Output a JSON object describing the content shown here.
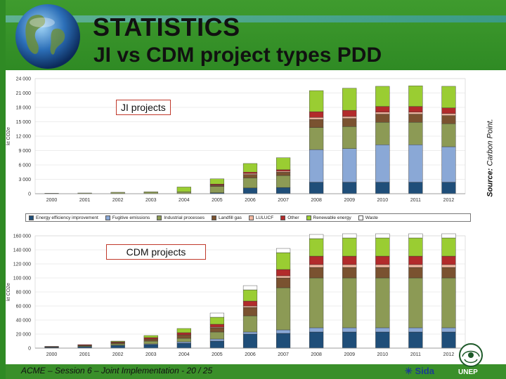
{
  "header": {
    "title": "STATISTICS",
    "subtitle": "JI vs CDM project types PDD"
  },
  "source_note": {
    "label": "Source:",
    "value": "Carbon Point."
  },
  "footer": {
    "session": "ACME – Session 6 – Joint Implementation - 20 / 25",
    "sida": "Sida",
    "unep": "UNEP"
  },
  "colors": {
    "band": "#3a8f2a",
    "label_border": "#c0392b"
  },
  "chart_data": [
    {
      "type": "bar",
      "stacked": true,
      "title": "JI projects",
      "xlabel": "",
      "ylabel": "kt CO2e",
      "ylim": [
        0,
        24000
      ],
      "yticks": [
        0,
        3000,
        6000,
        9000,
        12000,
        15000,
        18000,
        21000,
        24000
      ],
      "ytick_labels": [
        "0",
        "3 000",
        "6 000",
        "9 000",
        "12 000",
        "15 000",
        "18 000",
        "21 000",
        "24 000"
      ],
      "grid": true,
      "legend_position": "bottom",
      "categories": [
        "2000",
        "2001",
        "2002",
        "2003",
        "2004",
        "2005",
        "2006",
        "2007",
        "2008",
        "2009",
        "2010",
        "2011",
        "2012"
      ],
      "series": [
        {
          "name": "Energy efficiency improvement",
          "color": "#1f4e79",
          "values": [
            0,
            0,
            0,
            0,
            0,
            200,
            1200,
            1300,
            2400,
            2400,
            2400,
            2400,
            2400
          ]
        },
        {
          "name": "Fugitive emissions",
          "color": "#8aa8d6",
          "values": [
            0,
            0,
            0,
            0,
            0,
            0,
            0,
            0,
            6800,
            7000,
            7800,
            7800,
            7400
          ]
        },
        {
          "name": "Industrial processes",
          "color": "#8c9a55",
          "values": [
            100,
            150,
            300,
            400,
            400,
            1300,
            2100,
            2500,
            4600,
            4600,
            4700,
            4700,
            4800
          ]
        },
        {
          "name": "Landfill gas",
          "color": "#7a5230",
          "values": [
            0,
            0,
            0,
            0,
            0,
            200,
            700,
            700,
            1700,
            1700,
            1700,
            1700,
            1700
          ]
        },
        {
          "name": "LULUCF",
          "color": "#f2b8a0",
          "values": [
            0,
            0,
            0,
            0,
            0,
            100,
            200,
            200,
            400,
            400,
            400,
            400,
            400
          ]
        },
        {
          "name": "Other",
          "color": "#b22b2b",
          "values": [
            0,
            0,
            0,
            0,
            0,
            200,
            300,
            300,
            1200,
            1300,
            1200,
            1200,
            1200
          ]
        },
        {
          "name": "Renewable energy",
          "color": "#9acd32",
          "values": [
            0,
            0,
            0,
            0,
            1000,
            1100,
            1800,
            2500,
            4400,
            4600,
            4200,
            4300,
            4500
          ]
        },
        {
          "name": "Waste",
          "color": "#ffffff",
          "values": [
            0,
            0,
            0,
            0,
            0,
            0,
            0,
            0,
            0,
            0,
            0,
            0,
            0
          ]
        }
      ]
    },
    {
      "type": "bar",
      "stacked": true,
      "title": "CDM projects",
      "xlabel": "",
      "ylabel": "kt CO2e",
      "ylim": [
        0,
        160000
      ],
      "yticks": [
        0,
        20000,
        40000,
        60000,
        80000,
        100000,
        120000,
        140000,
        160000
      ],
      "ytick_labels": [
        "0",
        "20 000",
        "40 000",
        "60 000",
        "80 000",
        "100 000",
        "120 000",
        "140 000",
        "160 000"
      ],
      "grid": true,
      "categories": [
        "2000",
        "2001",
        "2002",
        "2003",
        "2004",
        "2005",
        "2006",
        "2007",
        "2008",
        "2009",
        "2010",
        "2011",
        "2012"
      ],
      "series": [
        {
          "name": "Energy efficiency improvement",
          "color": "#1f4e79",
          "values": [
            1000,
            2000,
            4000,
            5000,
            7000,
            10000,
            20000,
            21000,
            23000,
            23000,
            23000,
            23000,
            23000
          ]
        },
        {
          "name": "Fugitive emissions",
          "color": "#8aa8d6",
          "values": [
            0,
            0,
            0,
            1000,
            2000,
            3000,
            3000,
            5000,
            6000,
            6000,
            6000,
            6000,
            6000
          ]
        },
        {
          "name": "Industrial processes",
          "color": "#8c9a55",
          "values": [
            500,
            1000,
            2000,
            4000,
            5000,
            10000,
            23000,
            60000,
            71000,
            71000,
            71000,
            71000,
            71000
          ]
        },
        {
          "name": "Landfill gas",
          "color": "#7a5230",
          "values": [
            500,
            1000,
            2000,
            3000,
            5000,
            6000,
            12000,
            14000,
            15000,
            15000,
            15000,
            15000,
            15000
          ]
        },
        {
          "name": "LULUCF",
          "color": "#f2b8a0",
          "values": [
            0,
            0,
            0,
            0,
            0,
            1000,
            2000,
            3000,
            4000,
            4000,
            4000,
            4000,
            4000
          ]
        },
        {
          "name": "Other",
          "color": "#b22b2b",
          "values": [
            500,
            1000,
            1000,
            2000,
            3000,
            4000,
            7000,
            9000,
            12000,
            12000,
            12000,
            12000,
            12000
          ]
        },
        {
          "name": "Renewable energy",
          "color": "#9acd32",
          "values": [
            0,
            0,
            1000,
            3000,
            6000,
            10000,
            16000,
            24000,
            25000,
            26000,
            26000,
            26000,
            26000
          ]
        },
        {
          "name": "Waste",
          "color": "#ffffff",
          "values": [
            0,
            0,
            0,
            0,
            0,
            6000,
            6000,
            6000,
            6000,
            6000,
            6000,
            6000,
            6000
          ]
        }
      ]
    }
  ]
}
